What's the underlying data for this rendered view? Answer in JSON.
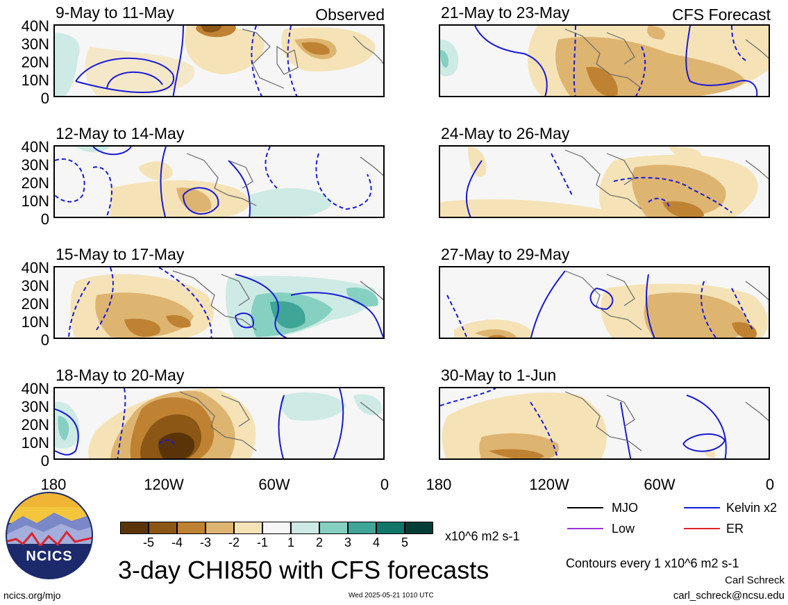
{
  "panels": [
    {
      "title": "9-May to 11-May",
      "tag": "Observed"
    },
    {
      "title": "12-May to 14-May",
      "tag": ""
    },
    {
      "title": "15-May to 17-May",
      "tag": ""
    },
    {
      "title": "18-May to 20-May",
      "tag": ""
    },
    {
      "title": "21-May to 23-May",
      "tag": "CFS Forecast"
    },
    {
      "title": "24-May to 26-May",
      "tag": ""
    },
    {
      "title": "27-May to 29-May",
      "tag": ""
    },
    {
      "title": "30-May to 1-Jun",
      "tag": ""
    }
  ],
  "y_ticks": [
    "40N",
    "30N",
    "20N",
    "10N",
    "0"
  ],
  "x_ticks": [
    "180",
    "120W",
    "60W",
    "0"
  ],
  "colorbar": {
    "labels": [
      "-5",
      "-4",
      "-3",
      "-2",
      "-1",
      "1",
      "2",
      "3",
      "4",
      "5"
    ],
    "colors": [
      "#5a3408",
      "#8c5614",
      "#bf8232",
      "#deb471",
      "#f5e3b7",
      "#f6f6f6",
      "#cdebe4",
      "#86d0c2",
      "#3fa596",
      "#0f7669",
      "#033d35"
    ],
    "units": "x10^6 m2 s-1"
  },
  "legend": {
    "items": [
      {
        "label": "MJO",
        "color": "#000000"
      },
      {
        "label": "Kelvin x2",
        "color": "#1818d8"
      },
      {
        "label": "Low",
        "color": "#9b30d8"
      },
      {
        "label": "ER",
        "color": "#e02020"
      }
    ]
  },
  "main_title": "3-day CHI850 with CFS forecasts",
  "contour_note": "Contours every 1 x10^6 m2 s-1",
  "author": "Carl Schreck",
  "email": "carl_schreck@ncsu.edu",
  "website": "ncics.org/mjo",
  "timestamp": "Wed 2025-05-21 1010 UTC",
  "logo_text": "NCICS"
}
